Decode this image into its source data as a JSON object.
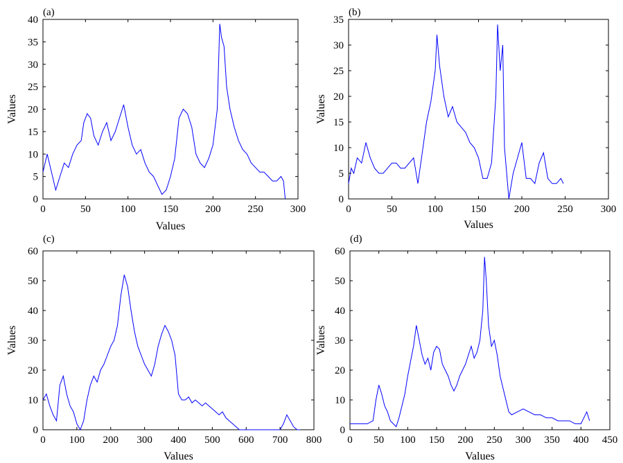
{
  "chart_data": [
    {
      "panel_label": "(a)",
      "type": "line",
      "xlabel": "Values",
      "ylabel": "Values",
      "xlim": [
        0,
        300
      ],
      "ylim": [
        0,
        40
      ],
      "xticks": [
        0,
        50,
        100,
        150,
        200,
        250,
        300
      ],
      "yticks": [
        0,
        5,
        10,
        15,
        20,
        25,
        30,
        35,
        40
      ],
      "line_color": "#0000ff",
      "grid": false,
      "series": [
        {
          "x": [
            0,
            5,
            10,
            15,
            20,
            25,
            30,
            35,
            40,
            45,
            48,
            52,
            56,
            60,
            65,
            70,
            75,
            80,
            85,
            90,
            95,
            100,
            105,
            110,
            115,
            120,
            125,
            130,
            135,
            140,
            145,
            150,
            155,
            160,
            165,
            170,
            175,
            180,
            185,
            190,
            195,
            200,
            205,
            208,
            210,
            213,
            216,
            220,
            225,
            230,
            235,
            240,
            245,
            250,
            255,
            260,
            265,
            270,
            275,
            280,
            283,
            285
          ],
          "y": [
            6,
            10,
            6,
            2,
            5,
            8,
            7,
            10,
            12,
            13,
            17,
            19,
            18,
            14,
            12,
            15,
            17,
            13,
            15,
            18,
            21,
            16,
            12,
            10,
            11,
            8,
            6,
            5,
            3,
            1,
            2,
            5,
            9,
            18,
            20,
            19,
            16,
            10,
            8,
            7,
            9,
            12,
            20,
            39,
            36,
            34,
            25,
            20,
            16,
            13,
            11,
            10,
            8,
            7,
            6,
            6,
            5,
            4,
            4,
            5,
            4,
            0
          ]
        }
      ]
    },
    {
      "panel_label": "(b)",
      "type": "line",
      "xlabel": "Values",
      "ylabel": "Values",
      "xlim": [
        0,
        300
      ],
      "ylim": [
        0,
        35
      ],
      "xticks": [
        0,
        50,
        100,
        150,
        200,
        250,
        300
      ],
      "yticks": [
        0,
        5,
        10,
        15,
        20,
        25,
        30,
        35
      ],
      "line_color": "#0000ff",
      "grid": false,
      "series": [
        {
          "x": [
            0,
            3,
            6,
            10,
            15,
            20,
            25,
            30,
            35,
            40,
            45,
            50,
            55,
            60,
            65,
            70,
            75,
            80,
            85,
            90,
            95,
            100,
            102,
            105,
            110,
            115,
            120,
            125,
            130,
            135,
            140,
            145,
            150,
            155,
            160,
            165,
            170,
            172,
            175,
            178,
            180,
            185,
            190,
            195,
            200,
            205,
            210,
            215,
            220,
            225,
            230,
            235,
            240,
            245,
            248
          ],
          "y": [
            3,
            6,
            5,
            8,
            7,
            11,
            8,
            6,
            5,
            5,
            6,
            7,
            7,
            6,
            6,
            7,
            8,
            3,
            9,
            15,
            19,
            25,
            32,
            26,
            20,
            16,
            18,
            15,
            14,
            13,
            11,
            10,
            8,
            4,
            4,
            7,
            20,
            34,
            25,
            30,
            10,
            0,
            5,
            8,
            11,
            4,
            4,
            3,
            7,
            9,
            4,
            3,
            3,
            4,
            3
          ]
        }
      ]
    },
    {
      "panel_label": "(c)",
      "type": "line",
      "xlabel": "Values",
      "ylabel": "Values",
      "xlim": [
        0,
        800
      ],
      "ylim": [
        0,
        60
      ],
      "xticks": [
        0,
        100,
        200,
        300,
        400,
        500,
        600,
        700,
        800
      ],
      "yticks": [
        0,
        10,
        20,
        30,
        40,
        50,
        60
      ],
      "line_color": "#0000ff",
      "grid": false,
      "series": [
        {
          "x": [
            0,
            10,
            20,
            30,
            40,
            50,
            60,
            70,
            80,
            90,
            100,
            110,
            120,
            130,
            140,
            150,
            160,
            170,
            180,
            190,
            200,
            210,
            220,
            230,
            240,
            250,
            260,
            270,
            280,
            290,
            300,
            310,
            320,
            330,
            340,
            350,
            360,
            370,
            380,
            390,
            400,
            410,
            420,
            430,
            440,
            450,
            460,
            470,
            480,
            490,
            500,
            510,
            520,
            530,
            540,
            550,
            560,
            570,
            580,
            600,
            620,
            640,
            660,
            680,
            700,
            710,
            720,
            730,
            740,
            750,
            760
          ],
          "y": [
            10,
            12,
            8,
            5,
            3,
            15,
            18,
            12,
            8,
            6,
            2,
            0,
            3,
            10,
            15,
            18,
            16,
            20,
            22,
            25,
            28,
            30,
            35,
            45,
            52,
            48,
            40,
            33,
            28,
            25,
            22,
            20,
            18,
            22,
            28,
            32,
            35,
            33,
            30,
            25,
            12,
            10,
            10,
            11,
            9,
            10,
            9,
            8,
            9,
            8,
            7,
            6,
            5,
            6,
            4,
            3,
            2,
            1,
            0,
            0,
            0,
            0,
            0,
            0,
            0,
            2,
            5,
            3,
            1,
            0,
            0
          ]
        }
      ]
    },
    {
      "panel_label": "(d)",
      "type": "line",
      "xlabel": "Values",
      "ylabel": "Values",
      "xlim": [
        0,
        450
      ],
      "ylim": [
        0,
        60
      ],
      "xticks": [
        0,
        50,
        100,
        150,
        200,
        250,
        300,
        350,
        400,
        450
      ],
      "yticks": [
        0,
        10,
        20,
        30,
        40,
        50,
        60
      ],
      "line_color": "#0000ff",
      "grid": false,
      "series": [
        {
          "x": [
            0,
            10,
            20,
            30,
            40,
            45,
            50,
            55,
            60,
            65,
            70,
            75,
            80,
            85,
            90,
            95,
            100,
            105,
            110,
            115,
            120,
            125,
            130,
            135,
            140,
            145,
            150,
            155,
            160,
            165,
            170,
            175,
            180,
            185,
            190,
            195,
            200,
            205,
            210,
            215,
            220,
            225,
            230,
            233,
            236,
            240,
            245,
            250,
            255,
            260,
            265,
            270,
            275,
            280,
            290,
            300,
            310,
            320,
            330,
            340,
            350,
            360,
            370,
            380,
            390,
            400,
            405,
            410,
            415
          ],
          "y": [
            2,
            2,
            2,
            2,
            3,
            10,
            15,
            12,
            8,
            6,
            3,
            2,
            1,
            4,
            8,
            12,
            18,
            23,
            28,
            35,
            30,
            25,
            22,
            24,
            20,
            26,
            28,
            27,
            22,
            20,
            18,
            15,
            13,
            15,
            18,
            20,
            22,
            25,
            28,
            24,
            26,
            30,
            40,
            58,
            50,
            35,
            28,
            30,
            25,
            18,
            14,
            10,
            6,
            5,
            6,
            7,
            6,
            5,
            5,
            4,
            4,
            3,
            3,
            3,
            2,
            2,
            4,
            6,
            3
          ]
        }
      ]
    }
  ]
}
